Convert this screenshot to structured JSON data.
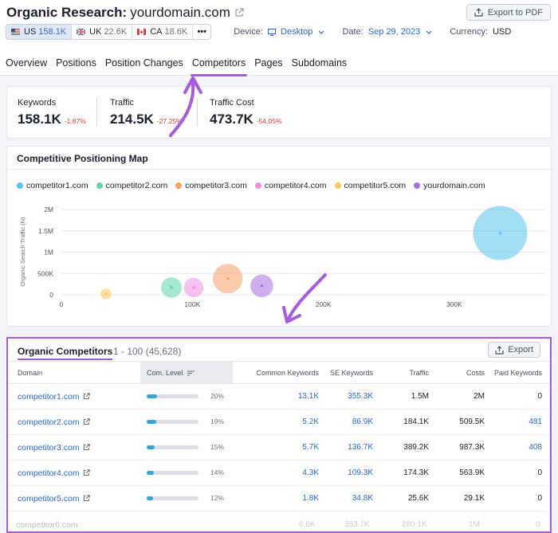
{
  "header": {
    "title_prefix": "Organic Research:",
    "domain": "yourdomain.com",
    "export_pdf_label": "Export to PDF"
  },
  "databases": [
    {
      "code": "US",
      "count": "158.1K",
      "active": true
    },
    {
      "code": "UK",
      "count": "22.6K",
      "active": false
    },
    {
      "code": "CA",
      "count": "18.6K",
      "active": false
    }
  ],
  "more_label": "•••",
  "filters": {
    "device_label": "Device:",
    "device_value": "Desktop",
    "date_label": "Date:",
    "date_value": "Sep 29, 2023",
    "currency_label": "Currency:",
    "currency_value": "USD"
  },
  "tabs": [
    "Overview",
    "Positions",
    "Position Changes",
    "Competitors",
    "Pages",
    "Subdomains"
  ],
  "active_tab": "Competitors",
  "metrics": [
    {
      "label": "Keywords",
      "value": "158.1K",
      "delta": "-1.87%"
    },
    {
      "label": "Traffic",
      "value": "214.5K",
      "delta": "-27.25%"
    },
    {
      "label": "Traffic Cost",
      "value": "473.7K",
      "delta": "-54.05%"
    }
  ],
  "map": {
    "title": "Competitive Positioning Map",
    "colors": {
      "competitor1": "#57c3f1",
      "competitor2": "#5fd6a9",
      "competitor3": "#f4a064",
      "competitor4": "#ef8fe4",
      "competitor5": "#f6c95a",
      "yourdomain": "#a56fe1"
    }
  },
  "chart_data": {
    "type": "scatter",
    "title": "Competitive Positioning Map",
    "ylabel": "Organic Search Traffic (N)",
    "xlabel": "",
    "x_ticks": [
      "0",
      "100K",
      "200K",
      "300K"
    ],
    "y_ticks": [
      "0",
      "500K",
      "1M",
      "1.5M",
      "2M"
    ],
    "xlim": [
      0,
      370000
    ],
    "ylim": [
      0,
      2000000
    ],
    "grid": true,
    "legend_position": "top-left",
    "series": [
      {
        "name": "competitor1.com",
        "x": 335000,
        "y": 1450000,
        "size": 1.0
      },
      {
        "name": "competitor2.com",
        "x": 84000,
        "y": 170000,
        "size": 0.38
      },
      {
        "name": "competitor3.com",
        "x": 127000,
        "y": 380000,
        "size": 0.55
      },
      {
        "name": "competitor4.com",
        "x": 101000,
        "y": 170000,
        "size": 0.36
      },
      {
        "name": "competitor5.com",
        "x": 34000,
        "y": 20000,
        "size": 0.2
      },
      {
        "name": "yourdomain.com",
        "x": 153000,
        "y": 210000,
        "size": 0.42
      }
    ]
  },
  "competitors": {
    "title": "Organic Competitors",
    "range": "1 - 100 (45,628)",
    "export_label": "Export",
    "columns": [
      "Domain",
      "Com. Level",
      "Common Keywords",
      "SE Keywords",
      "Traffic",
      "Costs",
      "Paid Keywords"
    ],
    "rows": [
      {
        "domain": "competitor1.com",
        "level": 20,
        "level_label": "20%",
        "common": "13.1K",
        "se": "355.3K",
        "traffic": "1.5M",
        "costs": "2M",
        "paid": "0"
      },
      {
        "domain": "competitor2.com",
        "level": 19,
        "level_label": "19%",
        "common": "5.2K",
        "se": "86.9K",
        "traffic": "184.1K",
        "costs": "509.5K",
        "paid": "481"
      },
      {
        "domain": "competitor3.com",
        "level": 15,
        "level_label": "15%",
        "common": "5.7K",
        "se": "136.7K",
        "traffic": "389.2K",
        "costs": "987.3K",
        "paid": "408"
      },
      {
        "domain": "competitor4.com",
        "level": 14,
        "level_label": "14%",
        "common": "4.3K",
        "se": "109.3K",
        "traffic": "174.3K",
        "costs": "563.9K",
        "paid": "0"
      },
      {
        "domain": "competitor5.com",
        "level": 12,
        "level_label": "12%",
        "common": "1.8K",
        "se": "34.8K",
        "traffic": "25.6K",
        "costs": "29.1K",
        "paid": "0"
      }
    ],
    "ghost_row": {
      "domain": "competitor6.com",
      "common": "6.6K",
      "se": "353.7K",
      "traffic": "280.1K",
      "costs": "1M",
      "paid": "0"
    }
  }
}
